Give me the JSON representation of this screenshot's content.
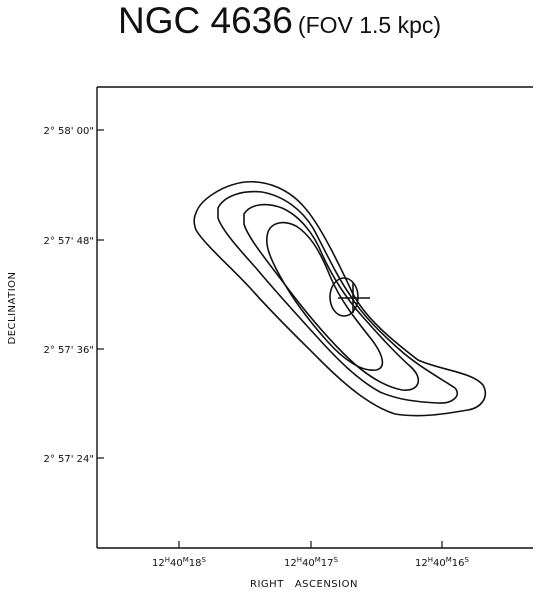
{
  "title": {
    "main": "NGC 4636",
    "sub": "(FOV 1.5 kpc)"
  },
  "figure": {
    "ylabel": "DECLINATION",
    "xlabel": "RIGHT   ASCENSION",
    "dec_ticks": [
      "2° 58' 00\"",
      "2° 57' 48\"",
      "2° 57' 36\"",
      "2° 57' 24\""
    ],
    "ra_ticks": [
      {
        "h": "12",
        "m": "40",
        "s": "18"
      },
      {
        "h": "12",
        "m": "40",
        "s": "17"
      },
      {
        "h": "12",
        "m": "40",
        "s": "16"
      }
    ],
    "center_marker": "cross-icon",
    "contour_count": 5,
    "line_color": "#111111"
  }
}
